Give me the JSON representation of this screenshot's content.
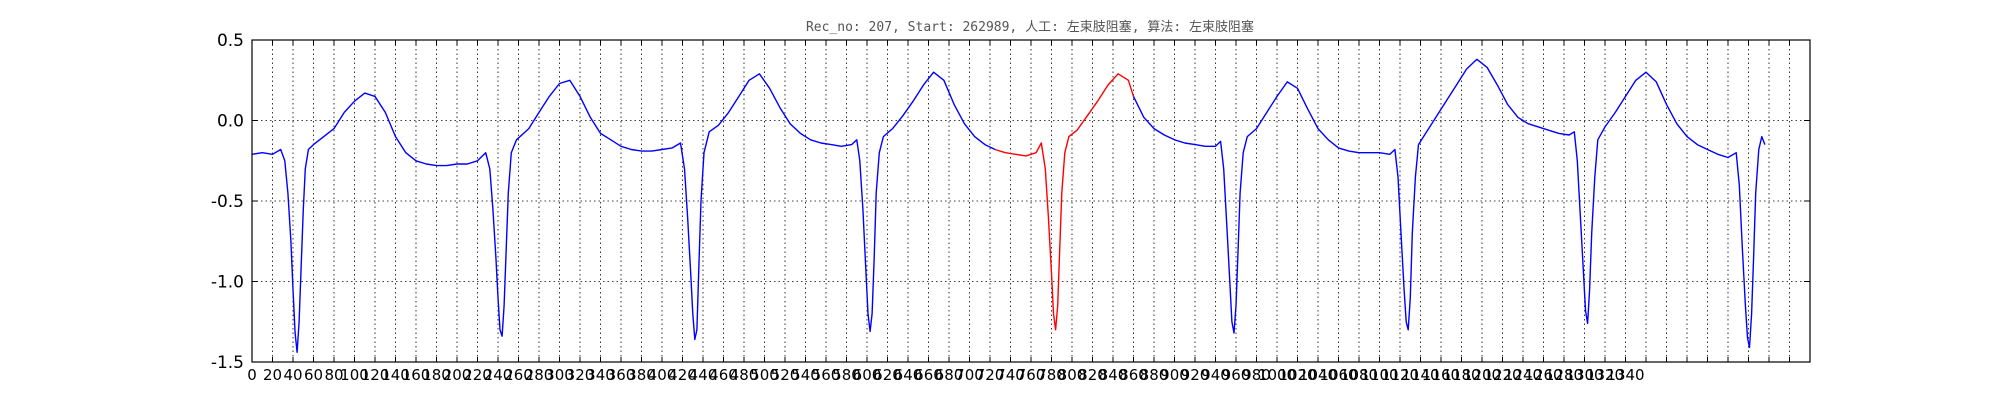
{
  "chart_data": {
    "type": "line",
    "title": "Rec_no: 207, Start: 262989, 人工: 左束肢阻塞, 算法: 左束肢阻塞",
    "xlabel": "",
    "ylabel": "",
    "xlim": [
      0,
      1520
    ],
    "ylim": [
      -1.5,
      0.5
    ],
    "grid": true,
    "x_tick_step": 20,
    "x_tick_label_last": 1340,
    "y_ticks": [
      -1.5,
      -1.0,
      -0.5,
      0.0,
      0.5
    ],
    "y_tick_labels": [
      "-1.5",
      "-1.0",
      "-0.5",
      "0.0",
      "0.5"
    ],
    "series": [
      {
        "color": "#0000ff",
        "values_by_segment": [
          [
            0,
            -0.21
          ],
          [
            10,
            -0.2
          ],
          [
            20,
            -0.21
          ],
          [
            28,
            -0.18
          ],
          [
            32,
            -0.25
          ],
          [
            35,
            -0.45
          ],
          [
            38,
            -0.75
          ],
          [
            40,
            -1.05
          ],
          [
            42,
            -1.32
          ],
          [
            44,
            -1.44
          ],
          [
            46,
            -1.25
          ],
          [
            48,
            -0.9
          ],
          [
            50,
            -0.55
          ],
          [
            52,
            -0.3
          ],
          [
            55,
            -0.18
          ],
          [
            60,
            -0.15
          ],
          [
            70,
            -0.1
          ],
          [
            80,
            -0.05
          ],
          [
            90,
            0.05
          ],
          [
            100,
            0.12
          ],
          [
            110,
            0.17
          ],
          [
            120,
            0.15
          ],
          [
            130,
            0.05
          ],
          [
            140,
            -0.1
          ],
          [
            150,
            -0.2
          ],
          [
            160,
            -0.25
          ],
          [
            170,
            -0.27
          ],
          [
            180,
            -0.28
          ],
          [
            190,
            -0.28
          ],
          [
            200,
            -0.27
          ],
          [
            210,
            -0.27
          ],
          [
            220,
            -0.25
          ],
          [
            228,
            -0.2
          ],
          [
            232,
            -0.3
          ],
          [
            235,
            -0.55
          ],
          [
            238,
            -0.85
          ],
          [
            240,
            -1.1
          ],
          [
            242,
            -1.3
          ],
          [
            244,
            -1.34
          ],
          [
            246,
            -1.15
          ],
          [
            248,
            -0.8
          ],
          [
            250,
            -0.45
          ],
          [
            253,
            -0.2
          ],
          [
            258,
            -0.12
          ],
          [
            270,
            -0.05
          ],
          [
            280,
            0.05
          ],
          [
            290,
            0.15
          ],
          [
            300,
            0.23
          ],
          [
            310,
            0.25
          ],
          [
            320,
            0.15
          ],
          [
            330,
            0.02
          ],
          [
            340,
            -0.08
          ],
          [
            350,
            -0.12
          ],
          [
            360,
            -0.16
          ],
          [
            370,
            -0.18
          ],
          [
            380,
            -0.19
          ],
          [
            390,
            -0.19
          ],
          [
            400,
            -0.18
          ],
          [
            410,
            -0.17
          ],
          [
            418,
            -0.14
          ],
          [
            422,
            -0.3
          ],
          [
            425,
            -0.6
          ],
          [
            428,
            -0.95
          ],
          [
            430,
            -1.2
          ],
          [
            432,
            -1.36
          ],
          [
            434,
            -1.3
          ],
          [
            436,
            -0.9
          ],
          [
            438,
            -0.5
          ],
          [
            441,
            -0.2
          ],
          [
            446,
            -0.07
          ],
          [
            455,
            -0.03
          ],
          [
            465,
            0.05
          ],
          [
            475,
            0.15
          ],
          [
            485,
            0.25
          ],
          [
            495,
            0.29
          ],
          [
            505,
            0.2
          ],
          [
            515,
            0.08
          ],
          [
            525,
            -0.02
          ],
          [
            535,
            -0.08
          ],
          [
            545,
            -0.12
          ],
          [
            555,
            -0.14
          ],
          [
            565,
            -0.15
          ],
          [
            575,
            -0.16
          ],
          [
            585,
            -0.15
          ],
          [
            590,
            -0.12
          ],
          [
            593,
            -0.25
          ],
          [
            596,
            -0.55
          ],
          [
            599,
            -0.95
          ],
          [
            601,
            -1.2
          ],
          [
            603,
            -1.31
          ],
          [
            605,
            -1.2
          ],
          [
            607,
            -0.85
          ],
          [
            609,
            -0.45
          ],
          [
            612,
            -0.2
          ],
          [
            616,
            -0.1
          ],
          [
            625,
            -0.05
          ],
          [
            635,
            0.03
          ],
          [
            645,
            0.12
          ],
          [
            655,
            0.22
          ],
          [
            665,
            0.3
          ],
          [
            675,
            0.25
          ],
          [
            685,
            0.1
          ],
          [
            695,
            -0.02
          ],
          [
            705,
            -0.1
          ],
          [
            715,
            -0.15
          ],
          [
            725,
            -0.18
          ]
        ]
      },
      {
        "color": "#ff0000",
        "values": [
          [
            725,
            -0.18
          ],
          [
            735,
            -0.2
          ],
          [
            745,
            -0.21
          ],
          [
            755,
            -0.22
          ],
          [
            765,
            -0.2
          ],
          [
            770,
            -0.14
          ],
          [
            774,
            -0.3
          ],
          [
            777,
            -0.6
          ],
          [
            780,
            -0.95
          ],
          [
            782,
            -1.2
          ],
          [
            784,
            -1.3
          ],
          [
            786,
            -1.15
          ],
          [
            788,
            -0.8
          ],
          [
            790,
            -0.45
          ],
          [
            793,
            -0.2
          ],
          [
            797,
            -0.1
          ],
          [
            805,
            -0.06
          ],
          [
            815,
            0.03
          ],
          [
            825,
            0.12
          ],
          [
            835,
            0.22
          ],
          [
            845,
            0.29
          ],
          [
            855,
            0.25
          ],
          [
            860,
            0.15
          ]
        ]
      },
      {
        "color": "#0000ff",
        "values": [
          [
            860,
            0.15
          ],
          [
            870,
            0.02
          ],
          [
            880,
            -0.05
          ],
          [
            890,
            -0.09
          ],
          [
            900,
            -0.12
          ],
          [
            910,
            -0.14
          ],
          [
            920,
            -0.15
          ],
          [
            930,
            -0.16
          ],
          [
            940,
            -0.16
          ],
          [
            945,
            -0.13
          ],
          [
            948,
            -0.3
          ],
          [
            951,
            -0.65
          ],
          [
            954,
            -1.0
          ],
          [
            956,
            -1.25
          ],
          [
            958,
            -1.32
          ],
          [
            960,
            -1.15
          ],
          [
            962,
            -0.8
          ],
          [
            964,
            -0.45
          ],
          [
            967,
            -0.2
          ],
          [
            971,
            -0.1
          ],
          [
            980,
            -0.05
          ],
          [
            990,
            0.05
          ],
          [
            1000,
            0.15
          ],
          [
            1010,
            0.24
          ],
          [
            1020,
            0.2
          ],
          [
            1030,
            0.07
          ],
          [
            1040,
            -0.05
          ],
          [
            1050,
            -0.12
          ],
          [
            1060,
            -0.17
          ],
          [
            1070,
            -0.19
          ],
          [
            1080,
            -0.2
          ],
          [
            1090,
            -0.2
          ],
          [
            1100,
            -0.2
          ],
          [
            1110,
            -0.21
          ],
          [
            1115,
            -0.18
          ],
          [
            1118,
            -0.35
          ],
          [
            1121,
            -0.7
          ],
          [
            1124,
            -1.05
          ],
          [
            1126,
            -1.25
          ],
          [
            1128,
            -1.3
          ],
          [
            1130,
            -1.1
          ],
          [
            1132,
            -0.7
          ],
          [
            1135,
            -0.35
          ],
          [
            1138,
            -0.15
          ],
          [
            1145,
            -0.08
          ],
          [
            1155,
            0.02
          ],
          [
            1165,
            0.12
          ],
          [
            1175,
            0.22
          ],
          [
            1185,
            0.32
          ],
          [
            1195,
            0.38
          ],
          [
            1205,
            0.33
          ],
          [
            1215,
            0.22
          ],
          [
            1225,
            0.1
          ],
          [
            1235,
            0.02
          ],
          [
            1245,
            -0.02
          ],
          [
            1255,
            -0.04
          ],
          [
            1265,
            -0.06
          ],
          [
            1275,
            -0.08
          ],
          [
            1285,
            -0.09
          ],
          [
            1290,
            -0.07
          ],
          [
            1293,
            -0.25
          ],
          [
            1296,
            -0.6
          ],
          [
            1299,
            -0.95
          ],
          [
            1301,
            -1.18
          ],
          [
            1303,
            -1.26
          ],
          [
            1305,
            -1.05
          ],
          [
            1307,
            -0.7
          ],
          [
            1310,
            -0.35
          ],
          [
            1313,
            -0.12
          ],
          [
            1320,
            -0.04
          ],
          [
            1330,
            0.05
          ],
          [
            1340,
            0.15
          ],
          [
            1350,
            0.25
          ],
          [
            1360,
            0.3
          ],
          [
            1370,
            0.24
          ],
          [
            1380,
            0.1
          ],
          [
            1390,
            -0.02
          ],
          [
            1400,
            -0.1
          ],
          [
            1410,
            -0.15
          ],
          [
            1420,
            -0.18
          ],
          [
            1430,
            -0.21
          ],
          [
            1440,
            -0.23
          ],
          [
            1448,
            -0.2
          ],
          [
            1451,
            -0.4
          ],
          [
            1454,
            -0.8
          ],
          [
            1457,
            -1.15
          ],
          [
            1459,
            -1.35
          ],
          [
            1461,
            -1.41
          ],
          [
            1463,
            -1.2
          ],
          [
            1465,
            -0.85
          ],
          [
            1467,
            -0.45
          ],
          [
            1470,
            -0.18
          ],
          [
            1473,
            -0.1
          ],
          [
            1476,
            -0.15
          ]
        ]
      }
    ]
  }
}
